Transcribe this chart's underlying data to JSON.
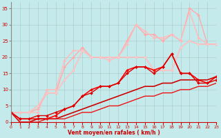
{
  "xlabel": "Vent moyen/en rafales ( km/h )",
  "xlim": [
    0,
    23
  ],
  "ylim": [
    0,
    37
  ],
  "yticks": [
    0,
    5,
    10,
    15,
    20,
    25,
    30,
    35
  ],
  "xticks": [
    0,
    1,
    2,
    3,
    4,
    5,
    6,
    7,
    8,
    9,
    10,
    11,
    12,
    13,
    14,
    15,
    16,
    17,
    18,
    19,
    20,
    21,
    22,
    23
  ],
  "bg_color": "#c5eaeb",
  "grid_color": "#b0cccc",
  "series": [
    {
      "x": [
        0,
        1,
        2,
        3,
        4,
        5,
        6,
        7,
        8,
        9,
        10,
        11,
        12,
        13,
        14,
        15,
        16,
        17,
        18,
        19,
        20,
        21,
        22,
        23
      ],
      "y": [
        3,
        3,
        3,
        4,
        9,
        9,
        17,
        20,
        23,
        20,
        20,
        20,
        20,
        25,
        30,
        27,
        27,
        25,
        27,
        25,
        35,
        33,
        24,
        24
      ],
      "color": "#ffaaaa",
      "lw": 1.0,
      "marker": "D",
      "ms": 2.0
    },
    {
      "x": [
        0,
        1,
        2,
        3,
        4,
        5,
        6,
        7,
        8,
        9,
        10,
        11,
        12,
        13,
        14,
        15,
        16,
        17,
        18,
        19,
        20,
        21,
        22,
        23
      ],
      "y": [
        3,
        3,
        3,
        3,
        10,
        10,
        19,
        22,
        22,
        20,
        20,
        19,
        20,
        24,
        30,
        28,
        26,
        26,
        27,
        25,
        34,
        26,
        24,
        24
      ],
      "color": "#ffbbbb",
      "lw": 1.0,
      "marker": "D",
      "ms": 2.0
    },
    {
      "x": [
        0,
        1,
        2,
        3,
        4,
        5,
        6,
        7,
        8,
        9,
        10,
        11,
        12,
        13,
        14,
        15,
        16,
        17,
        18,
        19,
        20,
        21,
        22,
        23
      ],
      "y": [
        3,
        3,
        3,
        5,
        9,
        9,
        13,
        16,
        22,
        20,
        20,
        20,
        20,
        20,
        20,
        20,
        16,
        16,
        16,
        23,
        25,
        24,
        24,
        24
      ],
      "color": "#ee8888",
      "lw": 1.0,
      "marker": "o",
      "ms": 2.0
    },
    {
      "x": [
        0,
        1,
        2,
        3,
        4,
        5,
        6,
        7,
        8,
        9,
        10,
        11,
        12,
        13,
        14,
        15,
        16,
        17,
        18,
        19,
        20,
        21,
        22,
        23
      ],
      "y": [
        3,
        3,
        3,
        5,
        9,
        9,
        13,
        16,
        22,
        20,
        20,
        20,
        20,
        20,
        20,
        20,
        16,
        16,
        16,
        23,
        25,
        24,
        24,
        24
      ],
      "color": "#ffcccc",
      "lw": 1.0,
      "marker": "o",
      "ms": 2.0
    },
    {
      "x": [
        0,
        1,
        2,
        3,
        4,
        5,
        6,
        7,
        8,
        9,
        10,
        11,
        12,
        13,
        14,
        15,
        16,
        17,
        18,
        19,
        20,
        21,
        22,
        23
      ],
      "y": [
        3,
        1,
        1,
        1,
        1,
        2,
        4,
        5,
        8,
        10,
        11,
        11,
        12,
        16,
        17,
        17,
        16,
        17,
        21,
        15,
        15,
        13,
        12,
        14
      ],
      "color": "#ff0000",
      "lw": 1.2,
      "marker": "D",
      "ms": 2.0
    },
    {
      "x": [
        0,
        1,
        2,
        3,
        4,
        5,
        6,
        7,
        8,
        9,
        10,
        11,
        12,
        13,
        14,
        15,
        16,
        17,
        18,
        19,
        20,
        21,
        22,
        23
      ],
      "y": [
        3,
        1,
        1,
        2,
        2,
        3,
        4,
        5,
        8,
        9,
        11,
        11,
        12,
        15,
        17,
        17,
        15,
        17,
        21,
        15,
        15,
        12,
        12,
        13
      ],
      "color": "#dd0000",
      "lw": 1.0,
      "marker": "D",
      "ms": 2.0
    },
    {
      "x": [
        0,
        1,
        2,
        3,
        4,
        5,
        6,
        7,
        8,
        9,
        10,
        11,
        12,
        13,
        14,
        15,
        16,
        17,
        18,
        19,
        20,
        21,
        22,
        23
      ],
      "y": [
        3,
        0,
        0,
        1,
        1,
        1,
        2,
        3,
        4,
        5,
        6,
        7,
        8,
        9,
        10,
        11,
        11,
        12,
        12,
        13,
        13,
        13,
        13,
        14
      ],
      "color": "#cc0000",
      "lw": 1.2,
      "marker": null,
      "ms": 0
    },
    {
      "x": [
        0,
        1,
        2,
        3,
        4,
        5,
        6,
        7,
        8,
        9,
        10,
        11,
        12,
        13,
        14,
        15,
        16,
        17,
        18,
        19,
        20,
        21,
        22,
        23
      ],
      "y": [
        3,
        0,
        0,
        0,
        1,
        1,
        1,
        2,
        3,
        3,
        4,
        5,
        5,
        6,
        7,
        8,
        8,
        9,
        9,
        10,
        10,
        11,
        11,
        12
      ],
      "color": "#ee1111",
      "lw": 1.0,
      "marker": null,
      "ms": 0
    }
  ]
}
